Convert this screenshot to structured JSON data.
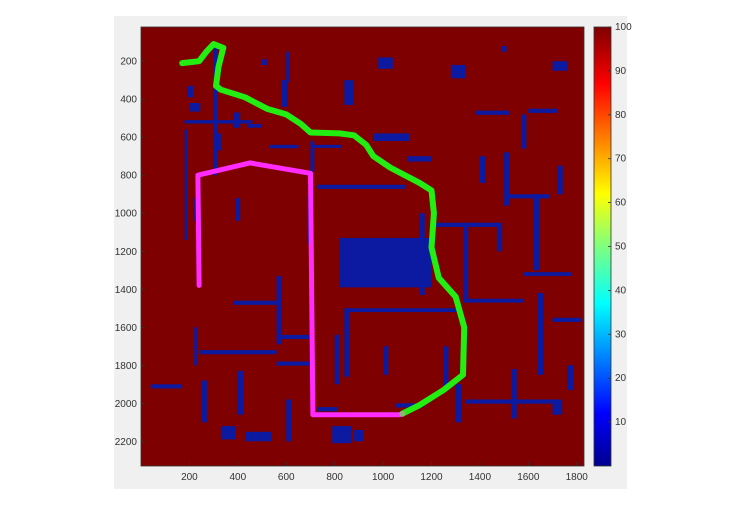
{
  "chart_data": {
    "type": "heatmap",
    "title": "",
    "xlabel": "",
    "ylabel": "",
    "xlim": [
      0,
      1830
    ],
    "ylim": [
      2330,
      20
    ],
    "x_ticks": [
      200,
      400,
      600,
      800,
      1000,
      1200,
      1400,
      1600,
      1800
    ],
    "y_ticks": [
      200,
      400,
      600,
      800,
      1000,
      1200,
      1400,
      1600,
      1800,
      2000,
      2200
    ],
    "colormap": "jet",
    "background_value": 100,
    "obstacle_value": 0,
    "colors": {
      "background": "#7f0000",
      "obstacle": "#0b1aa0",
      "path_a": "#ff2bff",
      "path_b": "#22ee11",
      "junction": "#8ab870"
    },
    "colorbar": {
      "range": [
        0,
        100
      ],
      "ticks": [
        10,
        20,
        30,
        40,
        50,
        60,
        70,
        80,
        90,
        100
      ],
      "labels": [
        "10",
        "20",
        "30",
        "40",
        "50",
        "60",
        "70",
        "80",
        "90",
        "100"
      ]
    },
    "series": [
      {
        "color": "#ff2bff",
        "points": [
          [
            240,
            1380
          ],
          [
            235,
            800
          ],
          [
            450,
            735
          ],
          [
            700,
            790
          ],
          [
            710,
            2060
          ],
          [
            1070,
            2060
          ]
        ]
      },
      {
        "color": "#22ee11",
        "points": [
          [
            1080,
            2055
          ],
          [
            1150,
            2010
          ],
          [
            1250,
            1930
          ],
          [
            1330,
            1850
          ],
          [
            1335,
            1600
          ],
          [
            1300,
            1440
          ],
          [
            1230,
            1340
          ],
          [
            1200,
            1180
          ],
          [
            1210,
            1000
          ],
          [
            1200,
            880
          ],
          [
            1150,
            840
          ],
          [
            1030,
            760
          ],
          [
            960,
            700
          ],
          [
            930,
            640
          ],
          [
            880,
            590
          ],
          [
            820,
            580
          ],
          [
            700,
            575
          ],
          [
            660,
            530
          ],
          [
            600,
            480
          ],
          [
            520,
            450
          ],
          [
            430,
            390
          ],
          [
            330,
            350
          ],
          [
            310,
            330
          ],
          [
            320,
            230
          ],
          [
            340,
            130
          ],
          [
            300,
            110
          ],
          [
            270,
            150
          ],
          [
            240,
            200
          ],
          [
            170,
            210
          ]
        ]
      }
    ],
    "obstacles": [
      [
        180,
        560,
        14,
        580
      ],
      [
        300,
        120,
        14,
        680
      ],
      [
        180,
        510,
        280,
        18
      ],
      [
        310,
        580,
        20,
        90
      ],
      [
        200,
        420,
        45,
        45
      ],
      [
        190,
        330,
        25,
        60
      ],
      [
        380,
        470,
        30,
        80
      ],
      [
        440,
        530,
        60,
        20
      ],
      [
        220,
        920,
        14,
        120
      ],
      [
        390,
        920,
        20,
        120
      ],
      [
        220,
        1600,
        12,
        200
      ],
      [
        580,
        300,
        25,
        140
      ],
      [
        600,
        150,
        14,
        160
      ],
      [
        530,
        640,
        120,
        18
      ],
      [
        690,
        900,
        18,
        260
      ],
      [
        500,
        190,
        20,
        30
      ],
      [
        700,
        620,
        16,
        160
      ],
      [
        710,
        640,
        120,
        16
      ],
      [
        730,
        850,
        360,
        22
      ],
      [
        820,
        1130,
        380,
        260
      ],
      [
        840,
        1500,
        22,
        360
      ],
      [
        850,
        1500,
        460,
        20
      ],
      [
        960,
        580,
        150,
        40
      ],
      [
        1100,
        700,
        100,
        28
      ],
      [
        1150,
        1000,
        22,
        430
      ],
      [
        1200,
        1050,
        280,
        22
      ],
      [
        1330,
        1050,
        22,
        420
      ],
      [
        1350,
        1450,
        230,
        20
      ],
      [
        1470,
        1050,
        22,
        150
      ],
      [
        1400,
        700,
        25,
        140
      ],
      [
        1380,
        460,
        140,
        22
      ],
      [
        1570,
        480,
        22,
        180
      ],
      [
        1600,
        450,
        120,
        22
      ],
      [
        1500,
        680,
        22,
        280
      ],
      [
        1520,
        900,
        170,
        22
      ],
      [
        1620,
        900,
        25,
        400
      ],
      [
        1720,
        750,
        22,
        150
      ],
      [
        1580,
        1310,
        200,
        20
      ],
      [
        1640,
        1420,
        22,
        430
      ],
      [
        1700,
        1550,
        120,
        22
      ],
      [
        1760,
        1800,
        28,
        130
      ],
      [
        1250,
        1700,
        20,
        210
      ],
      [
        1300,
        1900,
        22,
        200
      ],
      [
        1340,
        1980,
        390,
        22
      ],
      [
        1530,
        1820,
        22,
        260
      ],
      [
        1700,
        1980,
        40,
        80
      ],
      [
        560,
        1330,
        22,
        360
      ],
      [
        380,
        1460,
        180,
        22
      ],
      [
        560,
        1640,
        150,
        22
      ],
      [
        240,
        1720,
        320,
        22
      ],
      [
        40,
        1900,
        130,
        22
      ],
      [
        250,
        1880,
        22,
        220
      ],
      [
        400,
        1830,
        22,
        230
      ],
      [
        330,
        2120,
        60,
        70
      ],
      [
        430,
        2150,
        110,
        50
      ],
      [
        600,
        1980,
        22,
        220
      ],
      [
        560,
        1780,
        140,
        22
      ],
      [
        790,
        2120,
        80,
        90
      ],
      [
        880,
        2140,
        40,
        60
      ],
      [
        800,
        1640,
        22,
        260
      ],
      [
        730,
        2020,
        80,
        22
      ],
      [
        1000,
        1700,
        22,
        150
      ],
      [
        1050,
        2000,
        120,
        22
      ],
      [
        840,
        300,
        40,
        130
      ],
      [
        980,
        180,
        60,
        60
      ],
      [
        1280,
        220,
        60,
        70
      ],
      [
        1490,
        120,
        20,
        30
      ],
      [
        1700,
        200,
        60,
        50
      ]
    ]
  }
}
